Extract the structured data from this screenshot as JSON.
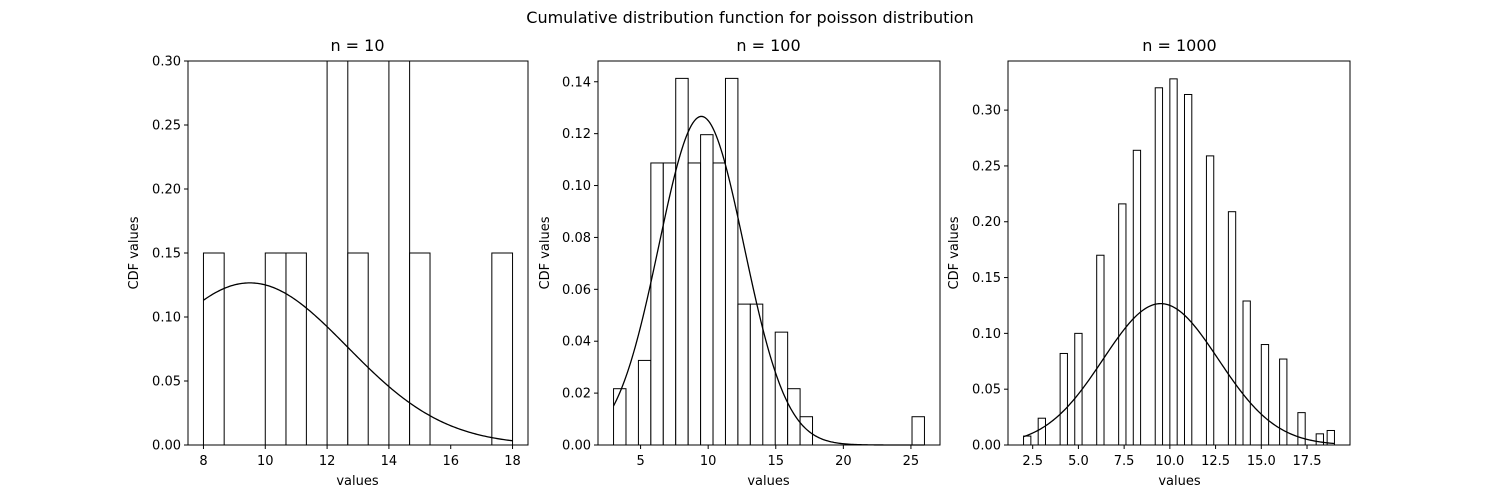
{
  "suptitle": "Cumulative distribution function for poisson distribution",
  "chart_data": [
    {
      "type": "bar",
      "title": "n = 10",
      "xlabel": "values",
      "ylabel": "CDF values",
      "xlim": [
        7.5,
        18.5
      ],
      "ylim": [
        0,
        0.3
      ],
      "xticks": [
        8,
        10,
        12,
        14,
        16,
        18
      ],
      "yticks": [
        0.0,
        0.05,
        0.1,
        0.15,
        0.2,
        0.25,
        0.3
      ],
      "xtick_decimals": 0,
      "ytick_decimals": 2,
      "bins": [
        {
          "x0": 8.0,
          "x1": 8.67,
          "value": 0.15
        },
        {
          "x0": 10.0,
          "x1": 10.67,
          "value": 0.15
        },
        {
          "x0": 10.67,
          "x1": 11.33,
          "value": 0.15
        },
        {
          "x0": 12.0,
          "x1": 12.67,
          "value": 0.3
        },
        {
          "x0": 12.67,
          "x1": 13.33,
          "value": 0.15
        },
        {
          "x0": 14.0,
          "x1": 14.67,
          "value": 0.3
        },
        {
          "x0": 14.67,
          "x1": 15.33,
          "value": 0.15
        },
        {
          "x0": 17.33,
          "x1": 18.0,
          "value": 0.15
        }
      ],
      "curve": {
        "mean": 9.5,
        "std": 3.15,
        "x_range": [
          8,
          18
        ]
      }
    },
    {
      "type": "bar",
      "title": "n = 100",
      "xlabel": "values",
      "ylabel": "CDF values",
      "xlim": [
        1.85,
        27.15
      ],
      "ylim": [
        0,
        0.148
      ],
      "xticks": [
        5,
        10,
        15,
        20,
        25
      ],
      "yticks": [
        0.0,
        0.02,
        0.04,
        0.06,
        0.08,
        0.1,
        0.12,
        0.14
      ],
      "xtick_decimals": 0,
      "ytick_decimals": 2,
      "bins": [
        {
          "x0": 3.0,
          "x1": 3.92,
          "value": 0.0217
        },
        {
          "x0": 4.84,
          "x1": 5.76,
          "value": 0.0326
        },
        {
          "x0": 5.76,
          "x1": 6.68,
          "value": 0.1087
        },
        {
          "x0": 6.68,
          "x1": 7.6,
          "value": 0.1087
        },
        {
          "x0": 7.6,
          "x1": 8.52,
          "value": 0.1413
        },
        {
          "x0": 8.52,
          "x1": 9.44,
          "value": 0.1087
        },
        {
          "x0": 9.44,
          "x1": 10.36,
          "value": 0.1196
        },
        {
          "x0": 10.36,
          "x1": 11.28,
          "value": 0.1087
        },
        {
          "x0": 11.28,
          "x1": 12.2,
          "value": 0.1413
        },
        {
          "x0": 12.2,
          "x1": 13.12,
          "value": 0.0543
        },
        {
          "x0": 13.12,
          "x1": 14.04,
          "value": 0.0543
        },
        {
          "x0": 14.96,
          "x1": 15.88,
          "value": 0.0435
        },
        {
          "x0": 15.88,
          "x1": 16.8,
          "value": 0.0217
        },
        {
          "x0": 16.8,
          "x1": 17.72,
          "value": 0.0109
        },
        {
          "x0": 25.08,
          "x1": 26.0,
          "value": 0.0109
        }
      ],
      "curve": {
        "mean": 9.5,
        "std": 3.15,
        "x_range": [
          3,
          26
        ]
      }
    },
    {
      "type": "bar",
      "title": "n = 1000",
      "xlabel": "values",
      "ylabel": "CDF values",
      "xlim": [
        1.15,
        19.85
      ],
      "ylim": [
        0,
        0.344
      ],
      "xticks": [
        2.5,
        5.0,
        7.5,
        10.0,
        12.5,
        15.0,
        17.5
      ],
      "yticks": [
        0.0,
        0.05,
        0.1,
        0.15,
        0.2,
        0.25,
        0.3
      ],
      "xtick_decimals": 1,
      "ytick_decimals": 2,
      "bins": [
        {
          "x0": 2.0,
          "x1": 2.4,
          "value": 0.008
        },
        {
          "x0": 2.8,
          "x1": 3.2,
          "value": 0.024
        },
        {
          "x0": 4.0,
          "x1": 4.4,
          "value": 0.082
        },
        {
          "x0": 4.8,
          "x1": 5.2,
          "value": 0.1
        },
        {
          "x0": 6.0,
          "x1": 6.4,
          "value": 0.17
        },
        {
          "x0": 6.8,
          "x1": 7.2,
          "value": 0.0
        },
        {
          "x0": 7.2,
          "x1": 7.6,
          "value": 0.216
        },
        {
          "x0": 8.0,
          "x1": 8.4,
          "value": 0.264
        },
        {
          "x0": 9.2,
          "x1": 9.6,
          "value": 0.32
        },
        {
          "x0": 10.0,
          "x1": 10.4,
          "value": 0.328
        },
        {
          "x0": 10.8,
          "x1": 11.2,
          "value": 0.314
        },
        {
          "x0": 12.0,
          "x1": 12.4,
          "value": 0.259
        },
        {
          "x0": 13.2,
          "x1": 13.6,
          "value": 0.209
        },
        {
          "x0": 14.0,
          "x1": 14.4,
          "value": 0.129
        },
        {
          "x0": 15.0,
          "x1": 15.4,
          "value": 0.09
        },
        {
          "x0": 16.0,
          "x1": 16.4,
          "value": 0.077
        },
        {
          "x0": 17.0,
          "x1": 17.4,
          "value": 0.029
        },
        {
          "x0": 18.0,
          "x1": 18.4,
          "value": 0.01
        },
        {
          "x0": 18.6,
          "x1": 19.0,
          "value": 0.013
        }
      ],
      "curve": {
        "mean": 9.5,
        "std": 3.15,
        "x_range": [
          2,
          19
        ]
      }
    }
  ]
}
